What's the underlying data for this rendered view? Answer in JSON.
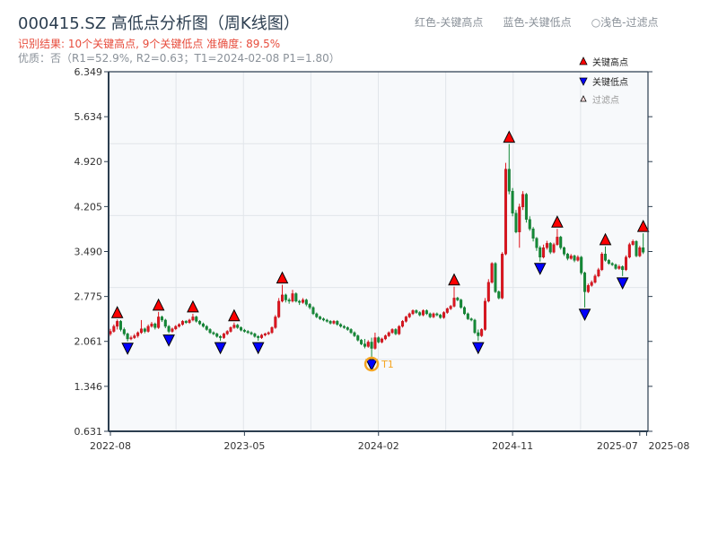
{
  "title": "000415.SZ 高低点分析图（周K线图）",
  "result_line": "识别结果: 10个关键高点, 9个关键低点  准确度: 89.5%",
  "quality_line": "优质：否（R1=52.9%, R2=0.63；T1=2024-02-08 P1=1.80）",
  "color_note": [
    "红色-关键高点",
    "蓝色-关键低点",
    "○浅色-过滤点"
  ],
  "colors": {
    "up": "#e0141e",
    "down": "#138a36",
    "high_marker": "#ff0000",
    "low_marker": "#0000ff",
    "t1": "#f5a623",
    "axis": "#2c3e50",
    "plot_bg": "#f7f9fb",
    "grid": "#e1e5ea"
  },
  "legend": [
    {
      "label": "关键高点",
      "icon": "red-up-triangle"
    },
    {
      "label": "关键低点",
      "icon": "blue-down-triangle"
    },
    {
      "label": "过滤点",
      "icon": "hollow-up-triangle"
    }
  ],
  "chart_data": {
    "type": "candlestick",
    "interval": "weekly",
    "ylim": [
      0.631,
      6.349
    ],
    "y_ticks": [
      "0.631",
      "1.346",
      "2.061",
      "2.775",
      "3.490",
      "4.205",
      "4.920",
      "5.634",
      "6.349"
    ],
    "x_ticks": [
      {
        "label": "2022-08",
        "index": 0
      },
      {
        "label": "2023-05",
        "index": 39
      },
      {
        "label": "2024-02",
        "index": 78
      },
      {
        "label": "2024-11",
        "index": 117
      },
      {
        "label": "2025-07",
        "index": 154
      },
      {
        "label": "2025-08",
        "index": 156
      }
    ],
    "grid": true,
    "legend_position": "top-right",
    "ohlc": [
      [
        2.18,
        2.26,
        2.15,
        2.22
      ],
      [
        2.22,
        2.33,
        2.2,
        2.3
      ],
      [
        2.3,
        2.41,
        2.25,
        2.38
      ],
      [
        2.38,
        2.4,
        2.22,
        2.25
      ],
      [
        2.25,
        2.28,
        2.15,
        2.18
      ],
      [
        2.18,
        2.2,
        2.06,
        2.1
      ],
      [
        2.1,
        2.15,
        2.08,
        2.12
      ],
      [
        2.12,
        2.18,
        2.1,
        2.15
      ],
      [
        2.15,
        2.22,
        2.12,
        2.2
      ],
      [
        2.2,
        2.4,
        2.18,
        2.26
      ],
      [
        2.26,
        2.28,
        2.19,
        2.22
      ],
      [
        2.22,
        2.33,
        2.2,
        2.3
      ],
      [
        2.3,
        2.37,
        2.28,
        2.34
      ],
      [
        2.34,
        2.36,
        2.25,
        2.28
      ],
      [
        2.28,
        2.53,
        2.26,
        2.45
      ],
      [
        2.45,
        2.47,
        2.37,
        2.4
      ],
      [
        2.4,
        2.42,
        2.27,
        2.3
      ],
      [
        2.3,
        2.32,
        2.19,
        2.22
      ],
      [
        2.22,
        2.28,
        2.2,
        2.26
      ],
      [
        2.26,
        2.32,
        2.24,
        2.3
      ],
      [
        2.3,
        2.35,
        2.28,
        2.33
      ],
      [
        2.33,
        2.4,
        2.31,
        2.38
      ],
      [
        2.38,
        2.4,
        2.34,
        2.36
      ],
      [
        2.36,
        2.42,
        2.34,
        2.4
      ],
      [
        2.4,
        2.5,
        2.38,
        2.45
      ],
      [
        2.45,
        2.47,
        2.36,
        2.38
      ],
      [
        2.38,
        2.4,
        2.32,
        2.34
      ],
      [
        2.34,
        2.36,
        2.28,
        2.3
      ],
      [
        2.3,
        2.32,
        2.23,
        2.25
      ],
      [
        2.25,
        2.27,
        2.18,
        2.2
      ],
      [
        2.2,
        2.22,
        2.16,
        2.18
      ],
      [
        2.18,
        2.2,
        2.12,
        2.14
      ],
      [
        2.14,
        2.16,
        2.07,
        2.12
      ],
      [
        2.12,
        2.2,
        2.1,
        2.18
      ],
      [
        2.18,
        2.24,
        2.16,
        2.22
      ],
      [
        2.22,
        2.3,
        2.2,
        2.28
      ],
      [
        2.28,
        2.36,
        2.26,
        2.32
      ],
      [
        2.32,
        2.34,
        2.26,
        2.28
      ],
      [
        2.28,
        2.3,
        2.22,
        2.24
      ],
      [
        2.24,
        2.26,
        2.2,
        2.22
      ],
      [
        2.22,
        2.24,
        2.18,
        2.2
      ],
      [
        2.2,
        2.22,
        2.16,
        2.18
      ],
      [
        2.18,
        2.2,
        2.12,
        2.14
      ],
      [
        2.14,
        2.16,
        2.07,
        2.12
      ],
      [
        2.12,
        2.18,
        2.1,
        2.16
      ],
      [
        2.16,
        2.2,
        2.14,
        2.18
      ],
      [
        2.18,
        2.22,
        2.16,
        2.2
      ],
      [
        2.2,
        2.3,
        2.18,
        2.28
      ],
      [
        2.28,
        2.48,
        2.26,
        2.45
      ],
      [
        2.45,
        2.75,
        2.43,
        2.7
      ],
      [
        2.7,
        2.96,
        2.68,
        2.8
      ],
      [
        2.8,
        2.82,
        2.68,
        2.72
      ],
      [
        2.72,
        2.75,
        2.66,
        2.7
      ],
      [
        2.7,
        2.88,
        2.68,
        2.82
      ],
      [
        2.82,
        2.84,
        2.68,
        2.7
      ],
      [
        2.7,
        2.72,
        2.64,
        2.68
      ],
      [
        2.68,
        2.75,
        2.66,
        2.72
      ],
      [
        2.72,
        2.74,
        2.62,
        2.65
      ],
      [
        2.65,
        2.67,
        2.57,
        2.6
      ],
      [
        2.6,
        2.62,
        2.48,
        2.5
      ],
      [
        2.5,
        2.52,
        2.43,
        2.45
      ],
      [
        2.45,
        2.47,
        2.4,
        2.42
      ],
      [
        2.42,
        2.44,
        2.38,
        2.4
      ],
      [
        2.4,
        2.42,
        2.36,
        2.38
      ],
      [
        2.38,
        2.4,
        2.33,
        2.35
      ],
      [
        2.35,
        2.4,
        2.33,
        2.38
      ],
      [
        2.38,
        2.4,
        2.31,
        2.33
      ],
      [
        2.33,
        2.35,
        2.28,
        2.3
      ],
      [
        2.3,
        2.32,
        2.26,
        2.28
      ],
      [
        2.28,
        2.3,
        2.23,
        2.25
      ],
      [
        2.25,
        2.27,
        2.18,
        2.2
      ],
      [
        2.2,
        2.22,
        2.13,
        2.15
      ],
      [
        2.15,
        2.17,
        2.06,
        2.08
      ],
      [
        2.08,
        2.1,
        2.0,
        2.02
      ],
      [
        2.02,
        2.1,
        1.95,
        1.98
      ],
      [
        1.98,
        2.08,
        1.96,
        2.05
      ],
      [
        2.05,
        2.12,
        1.8,
        1.95
      ],
      [
        1.95,
        2.2,
        1.93,
        2.12
      ],
      [
        2.12,
        2.14,
        2.03,
        2.05
      ],
      [
        2.05,
        2.12,
        2.03,
        2.1
      ],
      [
        2.1,
        2.17,
        2.08,
        2.15
      ],
      [
        2.15,
        2.22,
        2.13,
        2.2
      ],
      [
        2.2,
        2.27,
        2.18,
        2.25
      ],
      [
        2.25,
        2.27,
        2.16,
        2.18
      ],
      [
        2.18,
        2.32,
        2.16,
        2.3
      ],
      [
        2.3,
        2.4,
        2.28,
        2.38
      ],
      [
        2.38,
        2.47,
        2.36,
        2.45
      ],
      [
        2.45,
        2.52,
        2.43,
        2.5
      ],
      [
        2.5,
        2.57,
        2.48,
        2.55
      ],
      [
        2.55,
        2.57,
        2.5,
        2.52
      ],
      [
        2.52,
        2.54,
        2.46,
        2.48
      ],
      [
        2.48,
        2.57,
        2.46,
        2.55
      ],
      [
        2.55,
        2.57,
        2.48,
        2.5
      ],
      [
        2.5,
        2.52,
        2.43,
        2.45
      ],
      [
        2.45,
        2.52,
        2.43,
        2.5
      ],
      [
        2.5,
        2.52,
        2.46,
        2.48
      ],
      [
        2.48,
        2.5,
        2.42,
        2.44
      ],
      [
        2.44,
        2.54,
        2.42,
        2.52
      ],
      [
        2.52,
        2.6,
        2.5,
        2.58
      ],
      [
        2.58,
        2.64,
        2.56,
        2.62
      ],
      [
        2.62,
        2.93,
        2.6,
        2.75
      ],
      [
        2.75,
        2.77,
        2.7,
        2.72
      ],
      [
        2.72,
        2.74,
        2.58,
        2.6
      ],
      [
        2.6,
        2.62,
        2.48,
        2.5
      ],
      [
        2.5,
        2.52,
        2.4,
        2.42
      ],
      [
        2.42,
        2.44,
        2.38,
        2.4
      ],
      [
        2.4,
        2.42,
        2.18,
        2.2
      ],
      [
        2.2,
        2.25,
        2.07,
        2.15
      ],
      [
        2.15,
        2.27,
        2.13,
        2.25
      ],
      [
        2.25,
        2.75,
        2.23,
        2.7
      ],
      [
        2.7,
        3.05,
        2.68,
        3.0
      ],
      [
        3.0,
        3.32,
        2.98,
        3.3
      ],
      [
        3.3,
        3.32,
        2.83,
        2.85
      ],
      [
        2.85,
        2.87,
        2.73,
        2.75
      ],
      [
        2.75,
        3.48,
        2.73,
        3.45
      ],
      [
        3.45,
        4.9,
        3.43,
        4.8
      ],
      [
        4.8,
        5.2,
        4.4,
        4.45
      ],
      [
        4.45,
        4.5,
        4.05,
        4.1
      ],
      [
        4.1,
        4.15,
        3.78,
        3.8
      ],
      [
        3.8,
        4.25,
        3.55,
        4.2
      ],
      [
        4.2,
        4.45,
        4.15,
        4.4
      ],
      [
        4.4,
        4.42,
        3.95,
        4.0
      ],
      [
        4.0,
        4.05,
        3.82,
        3.85
      ],
      [
        3.85,
        3.88,
        3.65,
        3.7
      ],
      [
        3.7,
        3.72,
        3.5,
        3.55
      ],
      [
        3.55,
        3.58,
        3.33,
        3.4
      ],
      [
        3.4,
        3.6,
        3.38,
        3.55
      ],
      [
        3.55,
        3.66,
        3.52,
        3.62
      ],
      [
        3.62,
        3.64,
        3.45,
        3.48
      ],
      [
        3.48,
        3.63,
        3.46,
        3.6
      ],
      [
        3.6,
        3.85,
        3.58,
        3.72
      ],
      [
        3.72,
        3.74,
        3.52,
        3.55
      ],
      [
        3.55,
        3.57,
        3.42,
        3.45
      ],
      [
        3.45,
        3.47,
        3.35,
        3.38
      ],
      [
        3.38,
        3.45,
        3.36,
        3.42
      ],
      [
        3.42,
        3.44,
        3.32,
        3.35
      ],
      [
        3.35,
        3.43,
        3.33,
        3.4
      ],
      [
        3.4,
        3.42,
        3.12,
        3.15
      ],
      [
        3.15,
        3.17,
        2.6,
        2.85
      ],
      [
        2.85,
        2.98,
        2.83,
        2.95
      ],
      [
        2.95,
        3.03,
        2.93,
        3.0
      ],
      [
        3.0,
        3.13,
        2.98,
        3.1
      ],
      [
        3.1,
        3.23,
        3.08,
        3.2
      ],
      [
        3.2,
        3.48,
        3.18,
        3.45
      ],
      [
        3.45,
        3.57,
        3.33,
        3.35
      ],
      [
        3.35,
        3.37,
        3.28,
        3.3
      ],
      [
        3.3,
        3.32,
        3.26,
        3.28
      ],
      [
        3.28,
        3.3,
        3.2,
        3.22
      ],
      [
        3.22,
        3.28,
        3.2,
        3.25
      ],
      [
        3.25,
        3.27,
        3.1,
        3.2
      ],
      [
        3.2,
        3.43,
        3.18,
        3.4
      ],
      [
        3.4,
        3.63,
        3.38,
        3.6
      ],
      [
        3.6,
        3.68,
        3.58,
        3.65
      ],
      [
        3.65,
        3.67,
        3.4,
        3.42
      ],
      [
        3.42,
        3.58,
        3.4,
        3.55
      ],
      [
        3.55,
        3.78,
        3.45,
        3.48
      ]
    ],
    "key_highs": [
      2,
      14,
      24,
      36,
      50,
      100,
      116,
      130,
      144,
      155
    ],
    "key_lows": [
      5,
      17,
      32,
      43,
      76,
      107,
      125,
      138,
      149
    ],
    "annotation": {
      "label": "T1",
      "index": 76,
      "price": 1.8
    }
  }
}
